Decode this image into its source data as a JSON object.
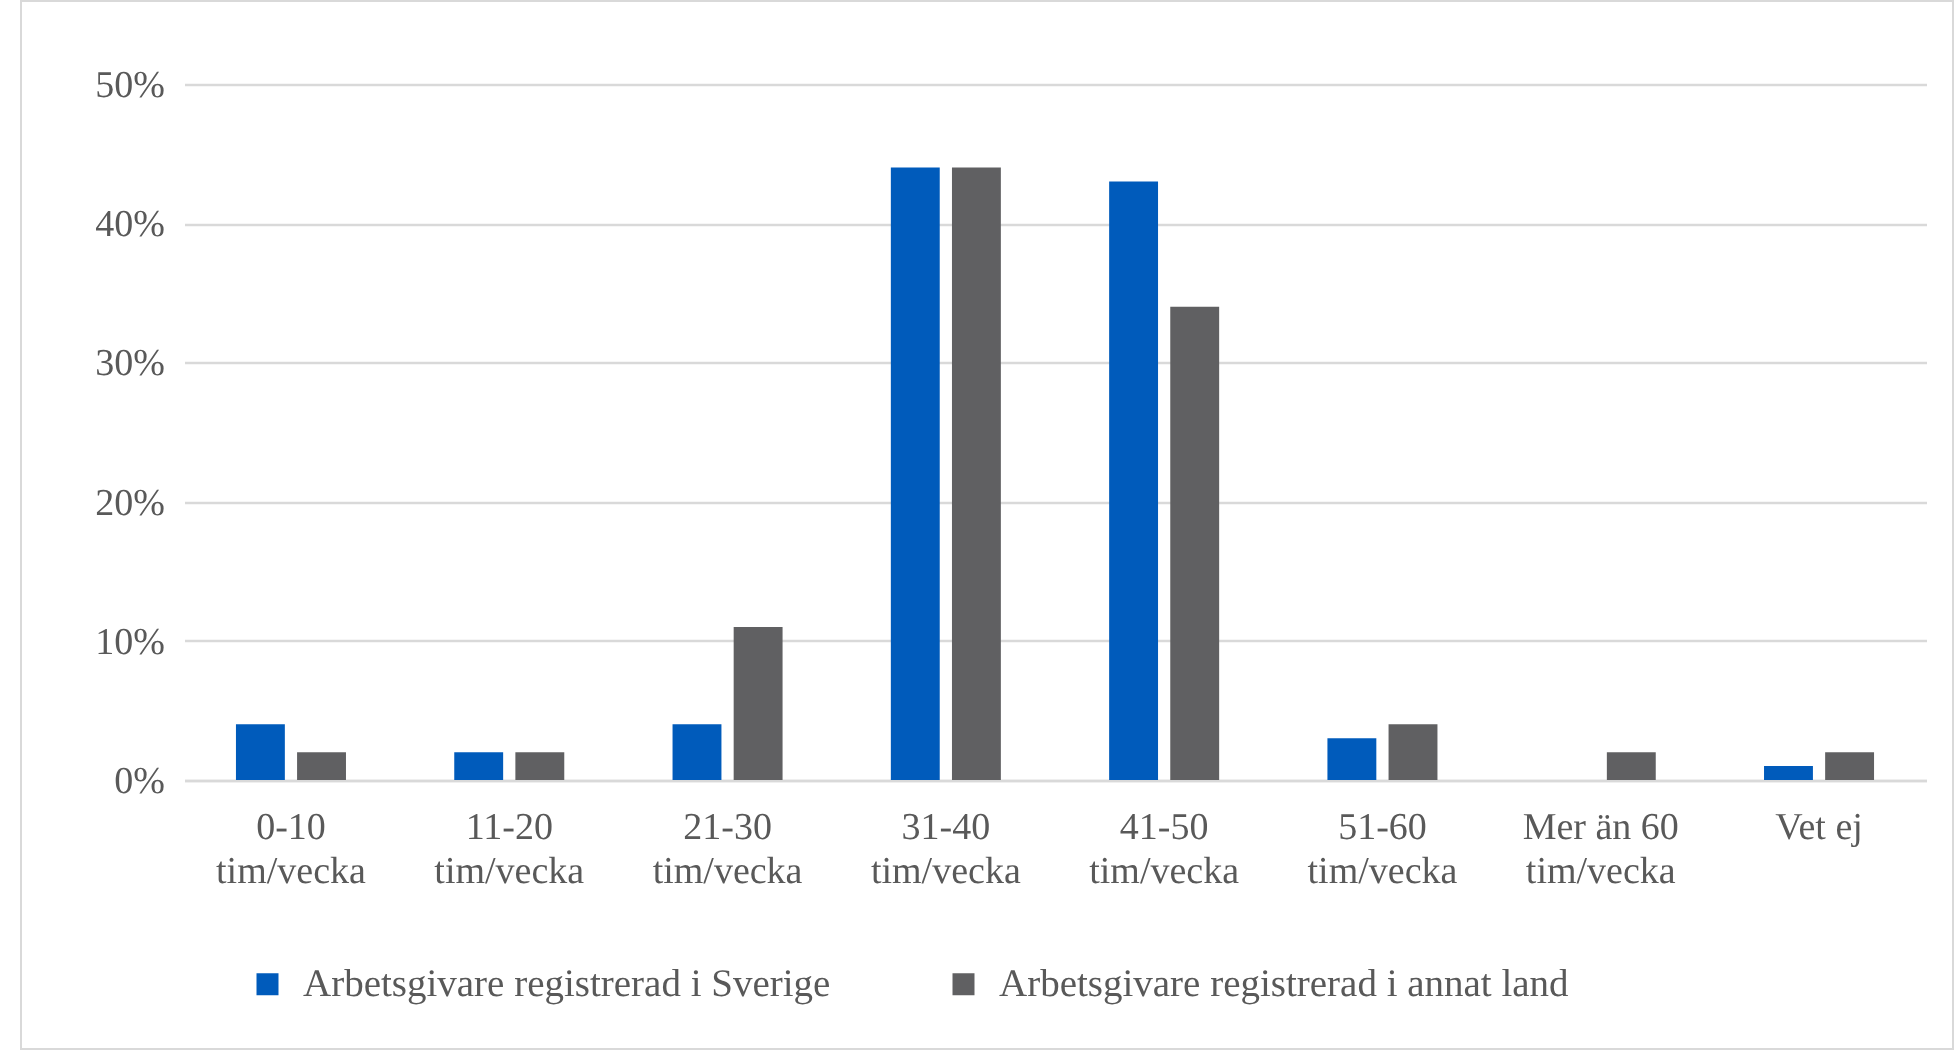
{
  "chart_data": {
    "type": "bar",
    "categories": [
      "0-10 tim/vecka",
      "11-20 tim/vecka",
      "21-30 tim/vecka",
      "31-40 tim/vecka",
      "41-50 tim/vecka",
      "51-60 tim/vecka",
      "Mer än 60 tim/vecka",
      "Vet ej"
    ],
    "series": [
      {
        "name": "Arbetsgivare registrerad i Sverige",
        "color": "#005bbb",
        "values": [
          4,
          2,
          4,
          44,
          43,
          3,
          null,
          1
        ]
      },
      {
        "name": "Arbetsgivare registrerad i annat land",
        "color": "#606062",
        "values": [
          2,
          2,
          11,
          44,
          34,
          4,
          2,
          2
        ]
      }
    ],
    "ylim": [
      0,
      50
    ],
    "yticks": [
      {
        "value": 0,
        "label": "0%"
      },
      {
        "value": 10,
        "label": "10%"
      },
      {
        "value": 20,
        "label": "20%"
      },
      {
        "value": 30,
        "label": "30%"
      },
      {
        "value": 40,
        "label": "40%"
      },
      {
        "value": 50,
        "label": "50%"
      }
    ],
    "grid": "y",
    "legend": "bottom"
  }
}
